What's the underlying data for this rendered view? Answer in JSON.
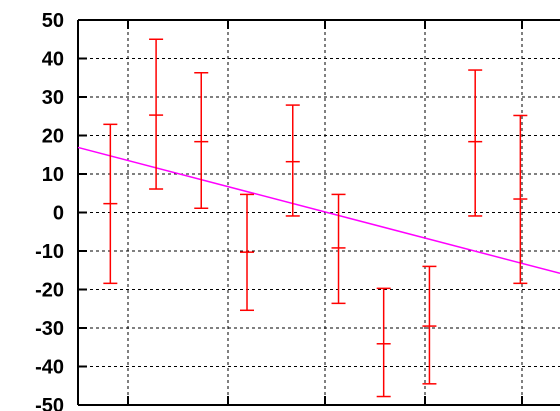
{
  "chart_data": {
    "type": "scatter",
    "title": "",
    "xlabel": "",
    "ylabel": "",
    "ylim": [
      -50,
      50
    ],
    "xlim": [
      0.5,
      11.4
    ],
    "y_ticks": [
      50,
      40,
      30,
      20,
      10,
      0,
      -10,
      -20,
      -30,
      -40,
      -50
    ],
    "y_tick_labels": [
      "50",
      "40",
      "30",
      "20",
      "10",
      "0",
      "-10",
      "-20",
      "-30",
      "-40",
      "-50"
    ],
    "x_gridlines": [
      1,
      2,
      3,
      4,
      5,
      6,
      7,
      8,
      9,
      10,
      11
    ],
    "grid": true,
    "colors": {
      "errorbar": "#ff0000",
      "fit_line": "#ff00ff",
      "grid": "#000000",
      "axes": "#000000"
    },
    "series": [
      {
        "type": "errorbar",
        "points": [
          {
            "x": 1.03,
            "y": 2.3,
            "ylow": -18.4,
            "yhigh": 22.9
          },
          {
            "x": 1.78,
            "y": 25.3,
            "ylow": 6.1,
            "yhigh": 45.0
          },
          {
            "x": 2.52,
            "y": 18.4,
            "ylow": 1.1,
            "yhigh": 36.3
          },
          {
            "x": 3.27,
            "y": -10.3,
            "ylow": -25.4,
            "yhigh": 4.7
          },
          {
            "x": 4.02,
            "y": 13.2,
            "ylow": -0.9,
            "yhigh": 27.9
          },
          {
            "x": 4.77,
            "y": -9.2,
            "ylow": -23.6,
            "yhigh": 4.7
          },
          {
            "x": 5.51,
            "y": -34.1,
            "ylow": -47.8,
            "yhigh": -19.7
          },
          {
            "x": 6.26,
            "y": -29.5,
            "ylow": -44.5,
            "yhigh": -14.0
          },
          {
            "x": 7.01,
            "y": 18.4,
            "ylow": -0.9,
            "yhigh": 37.0
          },
          {
            "x": 7.75,
            "y": 3.5,
            "ylow": -18.4,
            "yhigh": 25.2
          }
        ]
      },
      {
        "type": "line",
        "x": [
          0.5,
          8.4
        ],
        "y": [
          16.9,
          -15.8
        ]
      }
    ]
  }
}
